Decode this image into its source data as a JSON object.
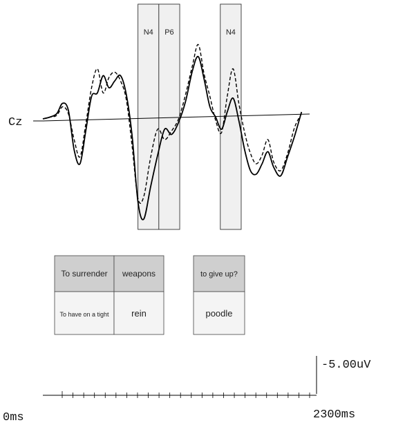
{
  "chart_data": {
    "type": "line",
    "electrode": "Cz",
    "x_start_label": "0ms",
    "x_end_label": "2300ms",
    "xlim": [
      0,
      2300
    ],
    "amplitude_scale_label": "-5.00uV",
    "x_tick_count": 23,
    "component_windows": [
      {
        "label": "N4",
        "start_ms": 820,
        "end_ms": 1000
      },
      {
        "label": "P6",
        "start_ms": 1000,
        "end_ms": 1180
      },
      {
        "label": "N4",
        "start_ms": 1530,
        "end_ms": 1710
      }
    ],
    "series": [
      {
        "style": "solid",
        "x": [
          0,
          60,
          120,
          170,
          220,
          270,
          320,
          370,
          420,
          470,
          520,
          570,
          620,
          670,
          720,
          770,
          820,
          870,
          930,
          990,
          1050,
          1110,
          1170,
          1230,
          1290,
          1340,
          1390,
          1440,
          1490,
          1540,
          1590,
          1640,
          1690,
          1740,
          1790,
          1840,
          1890,
          1940,
          1990,
          2050,
          2110,
          2170,
          2230
        ],
        "y": [
          0,
          0.1,
          0.3,
          0.9,
          0.5,
          -1.8,
          -2.6,
          -0.7,
          1.3,
          1.5,
          2.5,
          1.8,
          2.2,
          2.5,
          1.4,
          -1.0,
          -4.8,
          -5.8,
          -3.9,
          -2.1,
          -0.6,
          -0.9,
          -0.2,
          1.0,
          2.8,
          3.6,
          2.3,
          0.7,
          0.1,
          -0.6,
          0.4,
          1.2,
          -0.1,
          -1.8,
          -3.0,
          -3.2,
          -2.6,
          -1.9,
          -2.8,
          -3.3,
          -2.2,
          -1.0,
          0.4
        ]
      },
      {
        "style": "dashed",
        "x": [
          0,
          60,
          120,
          170,
          220,
          270,
          320,
          370,
          420,
          470,
          520,
          570,
          620,
          670,
          720,
          770,
          820,
          870,
          930,
          990,
          1050,
          1110,
          1170,
          1230,
          1290,
          1340,
          1390,
          1440,
          1490,
          1540,
          1590,
          1640,
          1690,
          1740,
          1790,
          1840,
          1890,
          1940,
          1990,
          2050,
          2110,
          2170,
          2230
        ],
        "y": [
          0,
          0.1,
          0.2,
          0.7,
          0.3,
          -1.2,
          -2.2,
          -0.3,
          1.8,
          2.9,
          1.5,
          2.4,
          2.7,
          2.2,
          1.1,
          -1.6,
          -4.6,
          -4.5,
          -2.2,
          -0.6,
          -1.2,
          -0.7,
          0.0,
          1.4,
          3.1,
          4.3,
          2.6,
          1.3,
          -0.1,
          -0.8,
          1.3,
          2.9,
          0.9,
          -0.8,
          -2.0,
          -2.6,
          -2.1,
          -1.2,
          -2.5,
          -3.0,
          -2.0,
          -0.5,
          0.3
        ]
      }
    ],
    "stimulus_table": {
      "left": {
        "rows": [
          [
            "To surrender",
            "weapons"
          ],
          [
            "To have on a tight",
            "rein"
          ]
        ]
      },
      "right": {
        "rows": [
          [
            "to give up?"
          ],
          [
            "poodle"
          ]
        ]
      }
    }
  }
}
